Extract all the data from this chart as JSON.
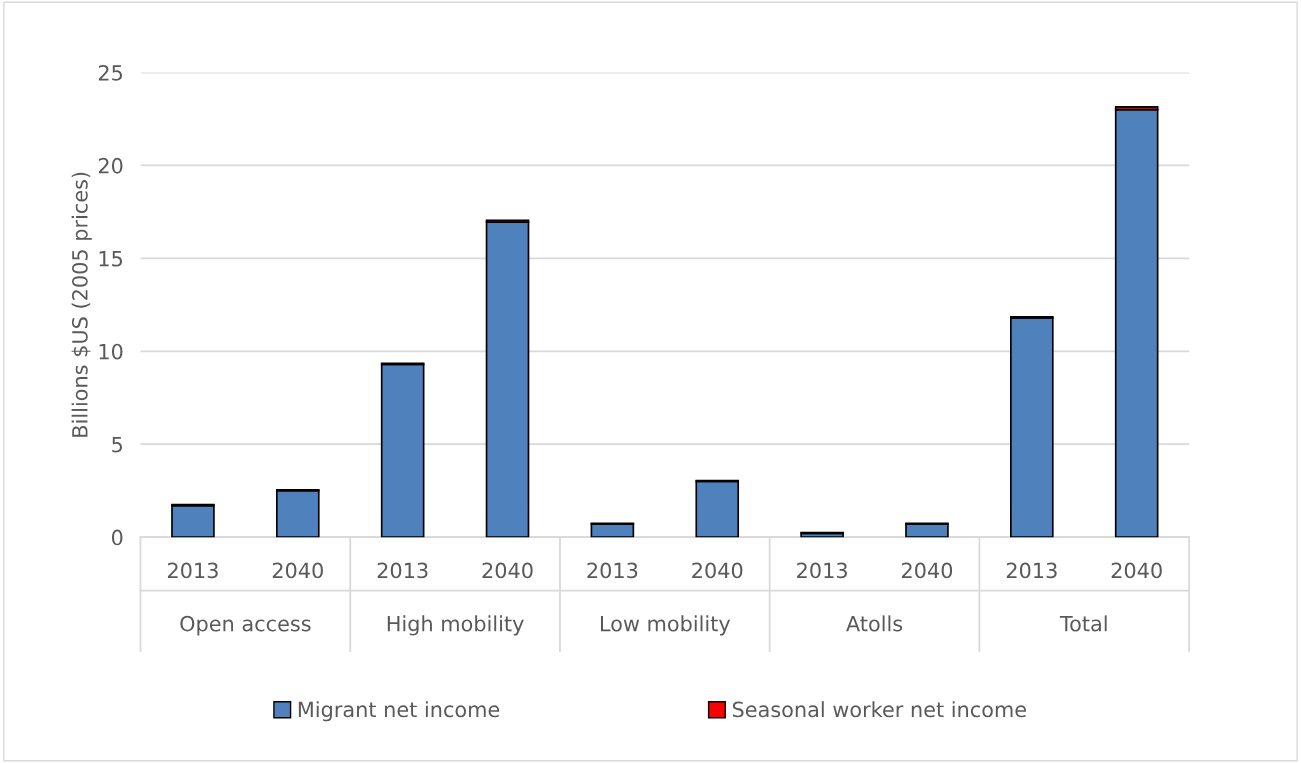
{
  "chart_data": {
    "type": "bar",
    "stacked": true,
    "ylabel": "Billions $US (2005 prices)",
    "categories": [
      "2013",
      "2040",
      "2013",
      "2040",
      "2013",
      "2040",
      "2013",
      "2040",
      "2013",
      "2040"
    ],
    "series": [
      {
        "name": "Migrant net income",
        "color": "#4f81bd",
        "values": [
          1.7,
          2.5,
          9.3,
          16.95,
          0.7,
          3.0,
          0.2,
          0.7,
          11.8,
          23.0
        ]
      },
      {
        "name": "Seasonal worker net income",
        "color": "#ff0000",
        "values": [
          0.05,
          0.05,
          0.05,
          0.1,
          0.05,
          0.05,
          0.05,
          0.05,
          0.05,
          0.15
        ]
      }
    ],
    "annotations": [
      "Open access",
      "High mobility",
      "Low mobility",
      "Atolls",
      "Total"
    ],
    "ylim": [
      0,
      25
    ],
    "yticks": [
      0,
      5,
      10,
      15,
      20,
      25
    ],
    "grid": "y",
    "legend": "bottom"
  }
}
